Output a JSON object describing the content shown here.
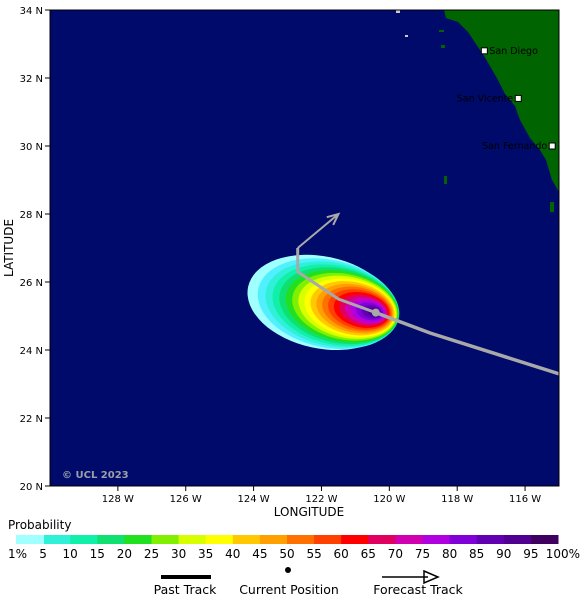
{
  "map": {
    "axes": {
      "xlabel": "LONGITUDE",
      "ylabel": "LATITUDE",
      "x_ticks": [
        "128 W",
        "126 W",
        "124 W",
        "122 W",
        "120 W",
        "118 W",
        "116 W"
      ],
      "y_ticks": [
        "34 N",
        "32 N",
        "30 N",
        "28 N",
        "26 N",
        "24 N",
        "22 N",
        "20 N"
      ],
      "lon_range": [
        -130,
        -115
      ],
      "lat_range": [
        20,
        34
      ]
    },
    "colors": {
      "ocean": "#000a6b",
      "land": "#006400",
      "track": "#a9a9a9"
    },
    "cities": [
      {
        "name": "San Diego",
        "lon": -117.2,
        "lat": 32.8
      },
      {
        "name": "San Vicente",
        "lon": -116.2,
        "lat": 31.4
      },
      {
        "name": "San Fernando",
        "lon": -115.2,
        "lat": 30.0
      }
    ],
    "current_position": {
      "lon": -120.4,
      "lat": 25.1
    },
    "past_track": [
      [
        -120.4,
        25.1
      ],
      [
        -121.5,
        25.5
      ],
      [
        -122.7,
        26.3
      ],
      [
        -122.7,
        27.0
      ]
    ],
    "forecast_track": [
      {
        "points": [
          [
            -120.4,
            25.1
          ],
          [
            -118.8,
            24.5
          ],
          [
            -115.0,
            23.3
          ]
        ]
      },
      {
        "points": [
          [
            -122.7,
            27.0
          ],
          [
            -121.5,
            28.0
          ]
        ],
        "arrow": true
      }
    ],
    "copyright": "© UCL 2023"
  },
  "legend": {
    "title": "Probability",
    "levels": [
      {
        "label": "1%",
        "color": "#a0ffff"
      },
      {
        "label": "5",
        "color": "#50f0ff"
      },
      {
        "label": "10",
        "color": "#30f0d8"
      },
      {
        "label": "15",
        "color": "#10f0a8"
      },
      {
        "label": "20",
        "color": "#10e070"
      },
      {
        "label": "25",
        "color": "#20e020"
      },
      {
        "label": "30",
        "color": "#80f000"
      },
      {
        "label": "35",
        "color": "#d8ff00"
      },
      {
        "label": "40",
        "color": "#ffff00"
      },
      {
        "label": "45",
        "color": "#ffc800"
      },
      {
        "label": "50",
        "color": "#ffa000"
      },
      {
        "label": "55",
        "color": "#ff7000"
      },
      {
        "label": "60",
        "color": "#ff4000"
      },
      {
        "label": "65",
        "color": "#ff0000"
      },
      {
        "label": "70",
        "color": "#e00060"
      },
      {
        "label": "75",
        "color": "#d000b0"
      },
      {
        "label": "80",
        "color": "#b000e0"
      },
      {
        "label": "85",
        "color": "#8000d8"
      },
      {
        "label": "90",
        "color": "#6000b0"
      },
      {
        "label": "95",
        "color": "#500090"
      },
      {
        "label": "100%",
        "color": "#400060"
      }
    ],
    "key": {
      "past": "Past Track",
      "current": "Current Position",
      "forecast": "Forecast Track"
    }
  }
}
